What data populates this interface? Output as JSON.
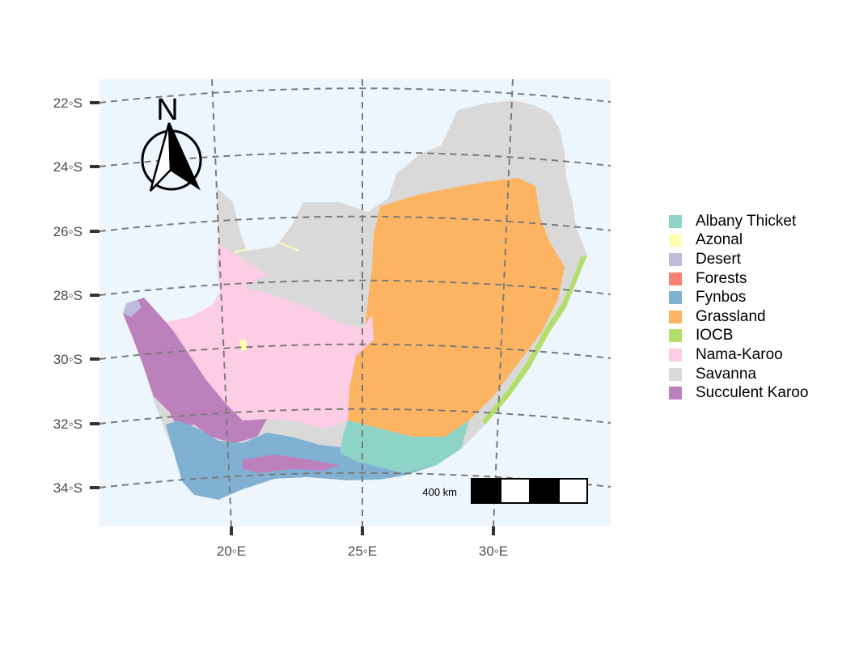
{
  "map": {
    "panel_background": "#eef6fd",
    "graticule_color": "#7a7a7a",
    "latitude_labels": [
      "22◦S",
      "24◦S",
      "26◦S",
      "28◦S",
      "30◦S",
      "32◦S",
      "34◦S"
    ],
    "longitude_labels": [
      "20◦E",
      "25◦E",
      "30◦E"
    ],
    "north_arrow_label": "N",
    "scale_bar_label": "400 km"
  },
  "legend": {
    "position": "right",
    "items": [
      {
        "label": "Albany Thicket",
        "color": "#8dd3c7"
      },
      {
        "label": "Azonal",
        "color": "#ffffb3"
      },
      {
        "label": "Desert",
        "color": "#bebada"
      },
      {
        "label": "Forests",
        "color": "#fb8072"
      },
      {
        "label": "Fynbos",
        "color": "#80b1d3"
      },
      {
        "label": "Grassland",
        "color": "#fdb462"
      },
      {
        "label": "IOCB",
        "color": "#b3de69"
      },
      {
        "label": "Nama-Karoo",
        "color": "#fccde5"
      },
      {
        "label": "Savanna",
        "color": "#d9d9d9"
      },
      {
        "label": "Succulent Karoo",
        "color": "#bc80bd"
      }
    ]
  }
}
